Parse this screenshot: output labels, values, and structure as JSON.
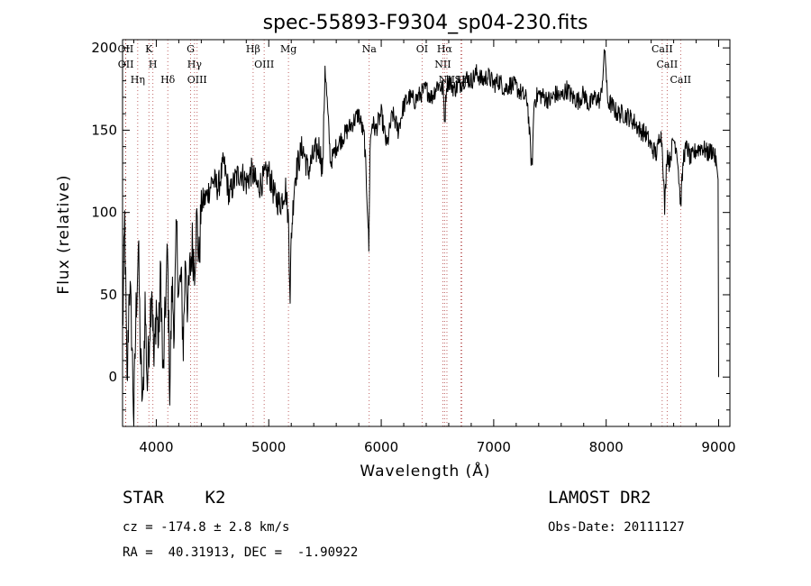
{
  "chart_data": {
    "type": "line",
    "title": "spec-55893-F9304_sp04-230.fits",
    "xlabel": "Wavelength (Å)",
    "ylabel": "Flux (relative)",
    "xlim": [
      3700,
      9100
    ],
    "ylim": [
      -30,
      205
    ],
    "xticks": [
      4000,
      5000,
      6000,
      7000,
      8000,
      9000
    ],
    "yticks": [
      0,
      50,
      100,
      150,
      200
    ],
    "grid": false,
    "series": [
      {
        "x": [
          3700,
          3720,
          3740,
          3760,
          3780,
          3800,
          3820,
          3840,
          3860,
          3880,
          3900,
          3920,
          3940,
          3960,
          3980,
          4000,
          4020,
          4040,
          4060,
          4080,
          4100,
          4120,
          4140,
          4160,
          4180,
          4200,
          4220,
          4240,
          4260,
          4280,
          4300,
          4320,
          4340,
          4360,
          4380,
          4400,
          4450,
          4500,
          4550,
          4600,
          4650,
          4700,
          4750,
          4800,
          4850,
          4900,
          4950,
          5000,
          5050,
          5100,
          5150,
          5175,
          5190,
          5200,
          5230,
          5260,
          5300,
          5350,
          5400,
          5450,
          5480,
          5500,
          5550,
          5600,
          5650,
          5700,
          5750,
          5800,
          5850,
          5880,
          5890,
          5900,
          5920,
          5950,
          6000,
          6050,
          6100,
          6150,
          6200,
          6250,
          6300,
          6350,
          6400,
          6450,
          6500,
          6550,
          6565,
          6580,
          6600,
          6650,
          6700,
          6750,
          6800,
          6850,
          6900,
          6950,
          7000,
          7050,
          7100,
          7150,
          7200,
          7250,
          7300,
          7340,
          7360,
          7400,
          7450,
          7500,
          7550,
          7600,
          7650,
          7700,
          7750,
          7800,
          7850,
          7900,
          7950,
          7990,
          8010,
          8050,
          8100,
          8150,
          8200,
          8250,
          8300,
          8350,
          8400,
          8450,
          8480,
          8500,
          8520,
          8542,
          8560,
          8600,
          8630,
          8662,
          8690,
          8720,
          8750,
          8800,
          8850,
          8900,
          8950,
          8980,
          8995,
          9000
        ],
        "y": [
          25,
          95,
          -10,
          60,
          30,
          -25,
          40,
          80,
          10,
          -20,
          45,
          -5,
          30,
          60,
          5,
          45,
          20,
          65,
          -5,
          40,
          75,
          -8,
          55,
          30,
          90,
          50,
          60,
          20,
          75,
          40,
          65,
          80,
          70,
          95,
          70,
          105,
          110,
          120,
          115,
          130,
          110,
          120,
          125,
          118,
          125,
          115,
          120,
          125,
          110,
          105,
          115,
          95,
          50,
          85,
          120,
          130,
          140,
          125,
          135,
          140,
          125,
          190,
          130,
          140,
          145,
          150,
          155,
          160,
          145,
          100,
          78,
          140,
          155,
          150,
          160,
          140,
          160,
          150,
          165,
          170,
          168,
          172,
          175,
          170,
          178,
          175,
          155,
          178,
          180,
          175,
          178,
          182,
          180,
          185,
          180,
          183,
          178,
          180,
          175,
          178,
          176,
          172,
          168,
          125,
          168,
          172,
          170,
          168,
          172,
          170,
          175,
          170,
          168,
          172,
          165,
          170,
          168,
          200,
          168,
          165,
          160,
          160,
          158,
          155,
          150,
          148,
          140,
          135,
          150,
          140,
          102,
          138,
          130,
          145,
          138,
          105,
          135,
          140,
          132,
          138,
          140,
          136,
          138,
          130,
          120,
          0
        ]
      }
    ],
    "lines": [
      {
        "name": "Hη",
        "x": 3835
      },
      {
        "name": "OII",
        "x": 3727
      },
      {
        "name": "OII",
        "x": 3729
      },
      {
        "name": "H",
        "x": 3970
      },
      {
        "name": "K",
        "x": 3934
      },
      {
        "name": "Hδ",
        "x": 4102
      },
      {
        "name": "OIII",
        "x": 4363
      },
      {
        "name": "Hγ",
        "x": 4340
      },
      {
        "name": "G",
        "x": 4305
      },
      {
        "name": "Hβ",
        "x": 4861
      },
      {
        "name": "OIII",
        "x": 4959
      },
      {
        "name": "Mg",
        "x": 5175
      },
      {
        "name": "Na",
        "x": 5893
      },
      {
        "name": "OI",
        "x": 6363
      },
      {
        "name": "NII",
        "x": 6548
      },
      {
        "name": "NII",
        "x": 6584
      },
      {
        "name": "Hα",
        "x": 6563
      },
      {
        "name": "Li",
        "x": 6708
      },
      {
        "name": "SII",
        "x": 6717
      },
      {
        "name": "CaII",
        "x": 8498
      },
      {
        "name": "CaII",
        "x": 8542
      },
      {
        "name": "CaII",
        "x": 8662
      }
    ]
  },
  "info": {
    "object_class": "STAR    K2",
    "survey": "LAMOST DR2",
    "cz": "cz = -174.8 ± 2.8 km/s",
    "obs_date": "Obs-Date: 20111127",
    "radec": "RA =  40.31913, DEC =  -1.90922"
  }
}
